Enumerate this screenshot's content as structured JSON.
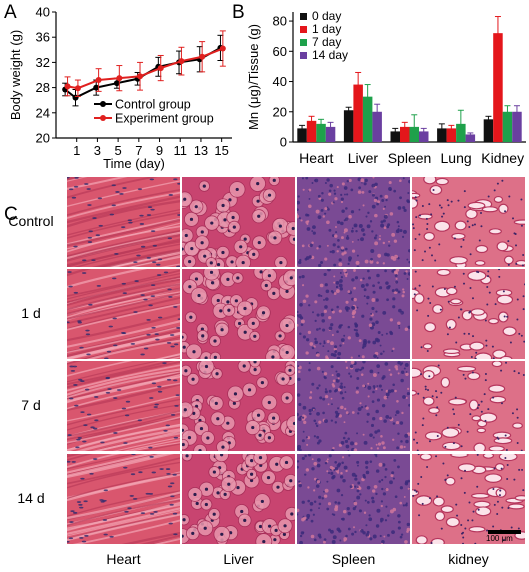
{
  "panels": {
    "a": "A",
    "b": "B",
    "c": "C"
  },
  "chart_data": [
    {
      "type": "line",
      "xlabel": "Time (day)",
      "ylabel": "Body weight (g)",
      "x": [
        0,
        1,
        3,
        5,
        7,
        9,
        11,
        13,
        15
      ],
      "xticks": [
        "1",
        "3",
        "5",
        "7",
        "9",
        "11",
        "13",
        "15"
      ],
      "yticks": [
        "20",
        "24",
        "28",
        "32",
        "36",
        "40"
      ],
      "ylim": [
        20,
        40
      ],
      "legend_position": "bottom-right",
      "series": [
        {
          "name": "Control group",
          "color": "#000000",
          "values": [
            27.7,
            26.4,
            28.0,
            28.7,
            29.4,
            31.3,
            32.0,
            32.5,
            34.3
          ],
          "errors": [
            1.0,
            1.3,
            1.2,
            0.8,
            1.0,
            1.5,
            1.8,
            2.0,
            2.0
          ]
        },
        {
          "name": "Experiment group",
          "color": "#e0201f",
          "values": [
            28.2,
            27.9,
            29.2,
            29.5,
            29.8,
            31.1,
            32.2,
            32.9,
            34.2
          ],
          "errors": [
            1.5,
            1.3,
            1.8,
            2.0,
            2.2,
            2.0,
            2.2,
            2.4,
            2.8
          ]
        }
      ]
    },
    {
      "type": "bar",
      "ylabel": "Mn (μg)/Tissue (g)",
      "categories": [
        "Heart",
        "Liver",
        "Spleen",
        "Lung",
        "Kidney"
      ],
      "yticks": [
        "0",
        "20",
        "40",
        "60",
        "80"
      ],
      "ylim": [
        0,
        86
      ],
      "legend_position": "top-left",
      "series": [
        {
          "name": "0 day",
          "color": "#111111",
          "values": [
            9,
            21,
            7,
            9,
            15
          ],
          "errors": [
            2,
            2,
            2,
            3,
            2
          ]
        },
        {
          "name": "1 day",
          "color": "#e4161b",
          "values": [
            14,
            38,
            10,
            9,
            72
          ],
          "errors": [
            3,
            8,
            3,
            2,
            11
          ]
        },
        {
          "name": "7 day",
          "color": "#1ea14b",
          "values": [
            12,
            30,
            10,
            12,
            20
          ],
          "errors": [
            3,
            8,
            8,
            9,
            4
          ]
        },
        {
          "name": "14 day",
          "color": "#6a3fa0",
          "values": [
            10,
            20,
            7,
            5,
            20
          ],
          "errors": [
            3,
            5,
            2,
            1,
            4
          ]
        }
      ]
    }
  ],
  "histology": {
    "rows": [
      "Control",
      "1 d",
      "7 d",
      "14 d"
    ],
    "columns": [
      "Heart",
      "Liver",
      "Spleen",
      "kidney"
    ],
    "scale_bar": "100 μm"
  },
  "colors": {
    "heart": "#d9566e",
    "liver": "#c84470",
    "spleen": "#7a4a94",
    "kidney": "#dd7088"
  }
}
